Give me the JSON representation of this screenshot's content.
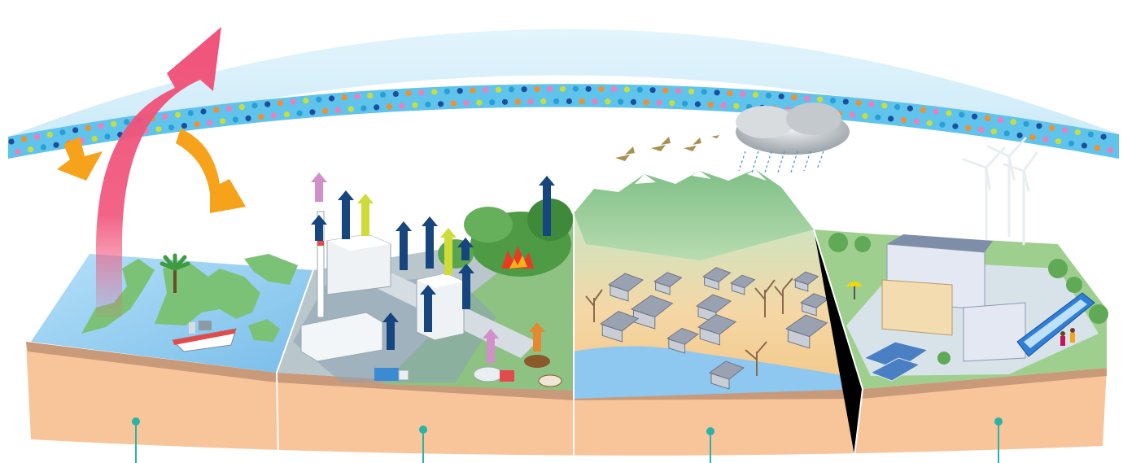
{
  "diagram": {
    "subject": "climate-change-overview",
    "colors": {
      "sky_band": "#d6eef9",
      "atmosphere_layer": "#5fc3ec",
      "dot_colors": [
        "#1b4f9c",
        "#f28e2b",
        "#ee7dbd",
        "#c9de3b",
        "#2a9fd6"
      ],
      "sunlight_arrow": "#f0537a",
      "reflected_arrow": "#f7a21b",
      "co2_arrow": "#17457e",
      "ch4_arrow": "#d28fc9",
      "n2o_arrow": "#cddc39",
      "other_arrow": "#e3892f",
      "soil": "#f8c59b",
      "soil_top": "#c99a79",
      "water": "#8ec7ef",
      "land_green": "#74b96b",
      "ground_grey": "#b9c6cc",
      "callout_line": "#2ab3a6"
    },
    "panels": [
      {
        "key": "greenhouse-effect",
        "icon": "earth-atmosphere-icon"
      },
      {
        "key": "emissions",
        "icon": "factory-icon"
      },
      {
        "key": "impacts",
        "icon": "drought-flood-icon"
      },
      {
        "key": "mitigation",
        "icon": "wind-turbine-icon"
      }
    ]
  }
}
